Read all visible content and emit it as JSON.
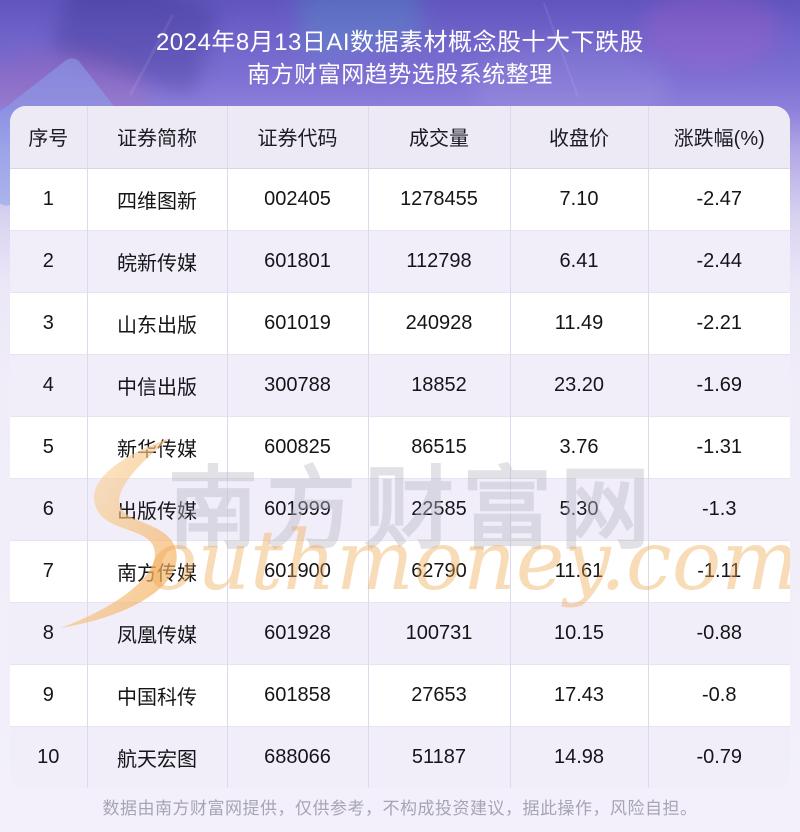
{
  "page": {
    "title_line1": "2024年8月13日AI数据素材概念股十大下跌股",
    "title_line2": "南方财富网趋势选股系统整理",
    "disclaimer": "数据由南方财富网提供，仅供参考，不构成投资建议，据此操作，风险自担。"
  },
  "watermark": {
    "cn_text": "南方财富网",
    "en_text": "outhmoney.com"
  },
  "colors": {
    "banner_purple": "#7c6fd3",
    "card_background": "#ffffff",
    "header_row_background": "#edeaf6",
    "even_row_background": "#f1eefa",
    "grid_line": "#dedaee",
    "watermark_orange": "#f0a64e",
    "watermark_gray": "#bab8c6",
    "disclaimer_gray": "#a7a5b4"
  },
  "table": {
    "field_names": [
      "index",
      "name",
      "code",
      "volume",
      "close",
      "change"
    ],
    "headers": [
      "序号",
      "证券简称",
      "证券代码",
      "成交量",
      "收盘价",
      "涨跌幅(%)"
    ],
    "rows": [
      [
        "1",
        "四维图新",
        "002405",
        "1278455",
        "7.10",
        "-2.47"
      ],
      [
        "2",
        "皖新传媒",
        "601801",
        "112798",
        "6.41",
        "-2.44"
      ],
      [
        "3",
        "山东出版",
        "601019",
        "240928",
        "11.49",
        "-2.21"
      ],
      [
        "4",
        "中信出版",
        "300788",
        "18852",
        "23.20",
        "-1.69"
      ],
      [
        "5",
        "新华传媒",
        "600825",
        "86515",
        "3.76",
        "-1.31"
      ],
      [
        "6",
        "出版传媒",
        "601999",
        "22585",
        "5.30",
        "-1.3"
      ],
      [
        "7",
        "南方传媒",
        "601900",
        "62790",
        "11.61",
        "-1.11"
      ],
      [
        "8",
        "凤凰传媒",
        "601928",
        "100731",
        "10.15",
        "-0.88"
      ],
      [
        "9",
        "中国科传",
        "601858",
        "27653",
        "17.43",
        "-0.8"
      ],
      [
        "10",
        "航天宏图",
        "688066",
        "51187",
        "14.98",
        "-0.79"
      ]
    ]
  },
  "chart_data": {
    "type": "table",
    "title": "2024年8月13日AI数据素材概念股十大下跌股",
    "subtitle": "南方财富网趋势选股系统整理",
    "columns": [
      "序号",
      "证券简称",
      "证券代码",
      "成交量",
      "收盘价",
      "涨跌幅(%)"
    ],
    "rows": [
      [
        1,
        "四维图新",
        "002405",
        1278455,
        7.1,
        -2.47
      ],
      [
        2,
        "皖新传媒",
        "601801",
        112798,
        6.41,
        -2.44
      ],
      [
        3,
        "山东出版",
        "601019",
        240928,
        11.49,
        -2.21
      ],
      [
        4,
        "中信出版",
        "300788",
        18852,
        23.2,
        -1.69
      ],
      [
        5,
        "新华传媒",
        "600825",
        86515,
        3.76,
        -1.31
      ],
      [
        6,
        "出版传媒",
        "601999",
        22585,
        5.3,
        -1.3
      ],
      [
        7,
        "南方传媒",
        "601900",
        62790,
        11.61,
        -1.11
      ],
      [
        8,
        "凤凰传媒",
        "601928",
        100731,
        10.15,
        -0.88
      ],
      [
        9,
        "中国科传",
        "601858",
        27653,
        17.43,
        -0.8
      ],
      [
        10,
        "航天宏图",
        "688066",
        51187,
        14.98,
        -0.79
      ]
    ]
  }
}
